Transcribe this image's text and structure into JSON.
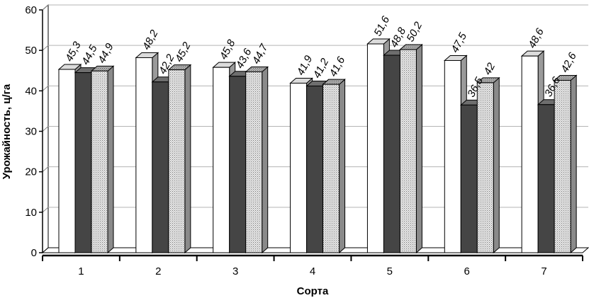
{
  "chart_data": {
    "type": "bar",
    "variant": "3d-clustered",
    "title": "",
    "xlabel": "Сорта",
    "ylabel": "Урожайность, ц/га",
    "categories": [
      "1",
      "2",
      "3",
      "4",
      "5",
      "6",
      "7"
    ],
    "ylim": [
      0,
      60
    ],
    "yticks": [
      "0",
      "10",
      "20",
      "30",
      "40",
      "50",
      "60"
    ],
    "grid": true,
    "legend": "none",
    "series": [
      {
        "color": "#ffffff",
        "values": [
          45.3,
          48.2,
          45.8,
          41.9,
          51.6,
          47.5,
          48.6
        ],
        "labels": [
          "45,3",
          "48,2",
          "45,8",
          "41,9",
          "51,6",
          "47,5",
          "48,6"
        ]
      },
      {
        "color": "#4a4a4a",
        "values": [
          44.5,
          42.2,
          43.6,
          41.2,
          48.8,
          36.5,
          36.6
        ],
        "labels": [
          "44,5",
          "42,2",
          "43,6",
          "41,2",
          "48,8",
          "36,5",
          "36,6"
        ]
      },
      {
        "color": "#d4d4d4",
        "pattern": "dotted",
        "values": [
          44.9,
          45.2,
          44.7,
          41.6,
          50.2,
          42,
          42.6
        ],
        "labels": [
          "44,9",
          "45,2",
          "44,7",
          "41,6",
          "50,2",
          "42",
          "42,6"
        ]
      }
    ]
  }
}
